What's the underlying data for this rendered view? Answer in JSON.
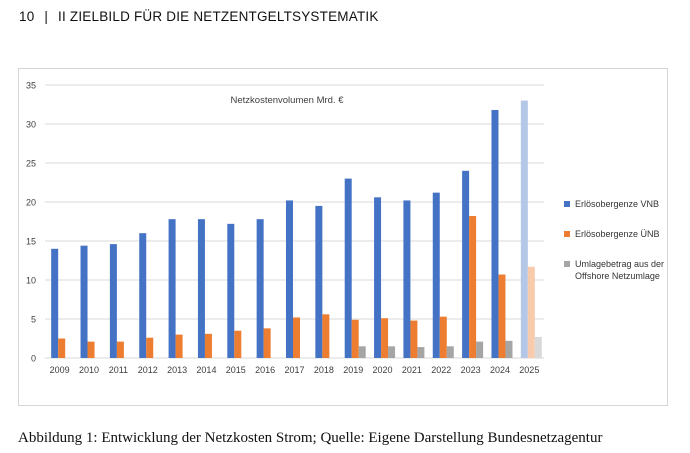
{
  "header": {
    "page_number": "10",
    "separator": "|",
    "section": "II  ZIELBILD FÜR DIE NETZENTGELTSYSTEMATIK"
  },
  "caption": "Abbildung 1: Entwicklung der Netzkosten Strom; Quelle: Eigene Darstellung Bundesnetzagentur",
  "chart_data": {
    "type": "bar",
    "title": "Netzkostenvolumen  Mrd. €",
    "xlabel": "",
    "ylabel": "",
    "ylim": [
      0,
      35
    ],
    "yticks": [
      0,
      5,
      10,
      15,
      20,
      25,
      30,
      35
    ],
    "grid": true,
    "legend_position": "right",
    "categories": [
      "2009",
      "2010",
      "2011",
      "2012",
      "2013",
      "2014",
      "2015",
      "2016",
      "2017",
      "2018",
      "2019",
      "2020",
      "2021",
      "2022",
      "2023",
      "2024",
      "2025"
    ],
    "series": [
      {
        "name": "Erlösobergenze VNB",
        "color": "#4472C4",
        "color_forecast": "#B4C7E7",
        "values": [
          14.0,
          14.4,
          14.6,
          16.0,
          17.8,
          17.8,
          17.2,
          17.8,
          20.2,
          19.5,
          23.0,
          20.6,
          20.2,
          21.2,
          24.0,
          31.8,
          33.0
        ]
      },
      {
        "name": "Erlösobergenze ÜNB",
        "color": "#ED7D31",
        "color_forecast": "#F8CBAD",
        "values": [
          2.5,
          2.1,
          2.1,
          2.6,
          3.0,
          3.1,
          3.5,
          3.8,
          5.2,
          5.6,
          4.9,
          5.1,
          4.8,
          5.3,
          18.2,
          10.7,
          11.7
        ]
      },
      {
        "name": "Umlagebetrag aus der Offshore Netzumlage",
        "color": "#A5A5A5",
        "color_forecast": "#D9D9D9",
        "values": [
          0,
          0,
          0,
          0,
          0,
          0,
          0,
          0,
          0,
          0,
          1.5,
          1.5,
          1.4,
          1.5,
          2.1,
          2.2,
          2.7
        ]
      }
    ],
    "forecast_categories": [
      "2025"
    ]
  }
}
